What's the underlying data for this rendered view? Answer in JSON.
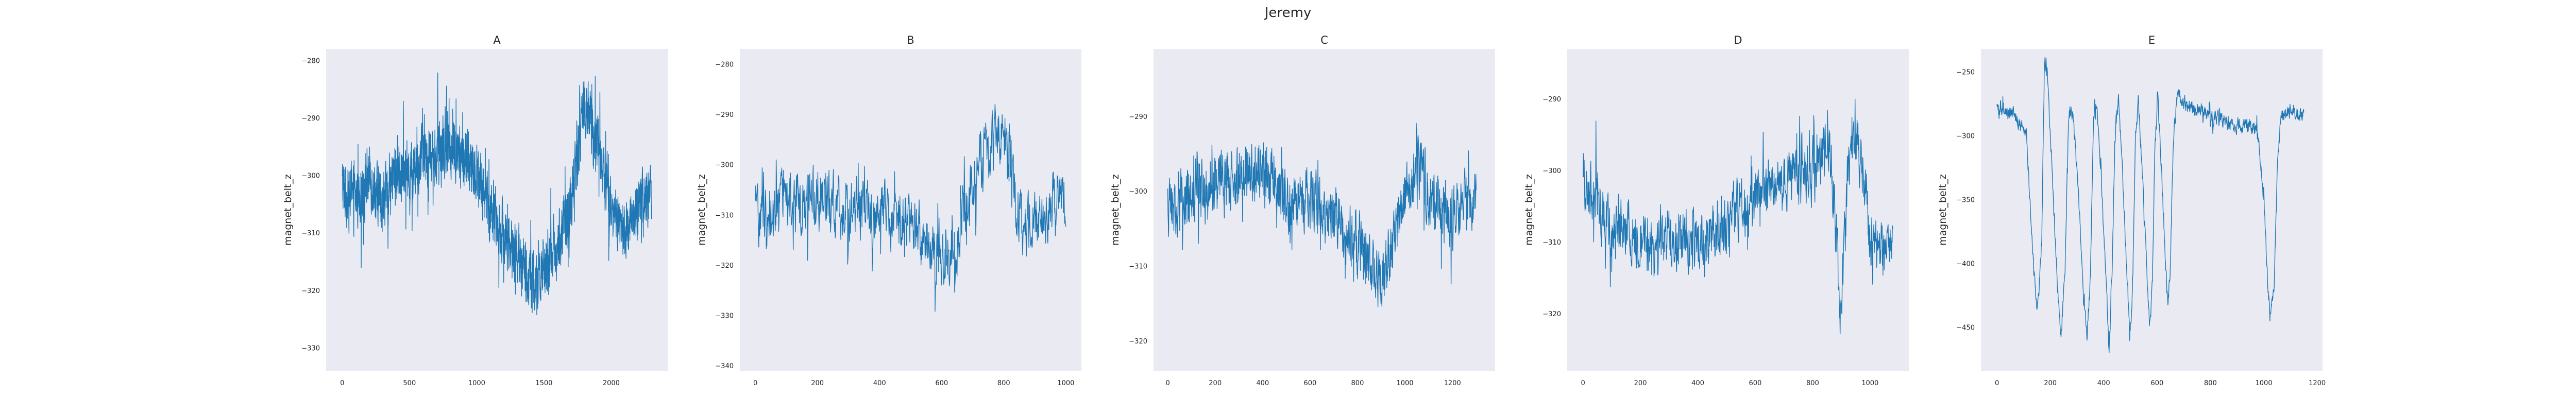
{
  "figure": {
    "title": "Jeremy",
    "background": "#ffffff",
    "axes_facecolor": "#eaeaf2",
    "line_color": "#1f77b4"
  },
  "chart_data": [
    {
      "type": "line",
      "title": "A",
      "xlabel": "",
      "ylabel": "magnet_belt_z",
      "xlim": [
        -120,
        2420
      ],
      "ylim": [
        -334,
        -278
      ],
      "xticks": [
        0,
        500,
        1000,
        1500,
        2000
      ],
      "yticks": [
        -280,
        -290,
        -300,
        -310,
        -320,
        -330
      ],
      "grid": false,
      "n_points": 2300,
      "keypoints": [
        [
          0,
          -302
        ],
        [
          80,
          -305
        ],
        [
          200,
          -300
        ],
        [
          300,
          -305
        ],
        [
          400,
          -299
        ],
        [
          500,
          -300
        ],
        [
          600,
          -296
        ],
        [
          700,
          -297
        ],
        [
          800,
          -295
        ],
        [
          900,
          -297
        ],
        [
          1000,
          -299
        ],
        [
          1100,
          -306
        ],
        [
          1200,
          -310
        ],
        [
          1300,
          -314
        ],
        [
          1400,
          -318
        ],
        [
          1450,
          -320
        ],
        [
          1500,
          -316
        ],
        [
          1600,
          -312
        ],
        [
          1700,
          -305
        ],
        [
          1750,
          -296
        ],
        [
          1800,
          -288
        ],
        [
          1850,
          -290
        ],
        [
          1900,
          -295
        ],
        [
          2000,
          -305
        ],
        [
          2100,
          -310
        ],
        [
          2200,
          -306
        ],
        [
          2300,
          -303
        ]
      ]
    },
    {
      "type": "line",
      "title": "B",
      "xlabel": "",
      "ylabel": "magnet_belt_z",
      "xlim": [
        -50,
        1050
      ],
      "ylim": [
        -341,
        -277
      ],
      "xticks": [
        0,
        200,
        400,
        600,
        800,
        1000
      ],
      "yticks": [
        -280,
        -290,
        -300,
        -310,
        -320,
        -330,
        -340
      ],
      "grid": false,
      "n_points": 1000,
      "keypoints": [
        [
          0,
          -310
        ],
        [
          100,
          -308
        ],
        [
          200,
          -307
        ],
        [
          300,
          -309
        ],
        [
          400,
          -310
        ],
        [
          500,
          -311
        ],
        [
          550,
          -315
        ],
        [
          600,
          -320
        ],
        [
          650,
          -316
        ],
        [
          700,
          -303
        ],
        [
          740,
          -298
        ],
        [
          780,
          -293
        ],
        [
          800,
          -292
        ],
        [
          830,
          -305
        ],
        [
          860,
          -313
        ],
        [
          900,
          -312
        ],
        [
          950,
          -308
        ],
        [
          1000,
          -305
        ]
      ]
    },
    {
      "type": "line",
      "title": "C",
      "xlabel": "",
      "ylabel": "magnet_belt_z",
      "xlim": [
        -60,
        1380
      ],
      "ylim": [
        -324,
        -281
      ],
      "xticks": [
        0,
        200,
        400,
        600,
        800,
        1000,
        1200
      ],
      "yticks": [
        -290,
        -300,
        -310,
        -320
      ],
      "grid": false,
      "n_points": 1320,
      "keypoints": [
        [
          0,
          -302
        ],
        [
          100,
          -301
        ],
        [
          200,
          -299
        ],
        [
          300,
          -298
        ],
        [
          400,
          -297
        ],
        [
          500,
          -301
        ],
        [
          600,
          -301
        ],
        [
          700,
          -303
        ],
        [
          800,
          -307
        ],
        [
          900,
          -312
        ],
        [
          950,
          -308
        ],
        [
          1000,
          -300
        ],
        [
          1050,
          -297
        ],
        [
          1100,
          -300
        ],
        [
          1200,
          -304
        ],
        [
          1300,
          -300
        ]
      ]
    },
    {
      "type": "line",
      "title": "D",
      "xlabel": "",
      "ylabel": "magnet_belt_z",
      "xlim": [
        -55,
        1135
      ],
      "ylim": [
        -328,
        -283
      ],
      "xticks": [
        0,
        200,
        400,
        600,
        800,
        1000
      ],
      "yticks": [
        -290,
        -300,
        -310,
        -320
      ],
      "grid": false,
      "n_points": 1080,
      "keypoints": [
        [
          0,
          -302
        ],
        [
          100,
          -307
        ],
        [
          200,
          -310
        ],
        [
          300,
          -309
        ],
        [
          400,
          -310
        ],
        [
          500,
          -308
        ],
        [
          600,
          -303
        ],
        [
          700,
          -302
        ],
        [
          800,
          -300
        ],
        [
          860,
          -297
        ],
        [
          880,
          -307
        ],
        [
          900,
          -322
        ],
        [
          920,
          -302
        ],
        [
          950,
          -296
        ],
        [
          980,
          -300
        ],
        [
          1000,
          -310
        ],
        [
          1050,
          -312
        ],
        [
          1080,
          -310
        ]
      ]
    },
    {
      "type": "line",
      "title": "E",
      "xlabel": "",
      "ylabel": "magnet_belt_z",
      "xlim": [
        -60,
        1220
      ],
      "ylim": [
        -484,
        -232
      ],
      "xticks": [
        0,
        200,
        400,
        600,
        800,
        1000,
        1200
      ],
      "yticks": [
        -250,
        -300,
        -350,
        -400,
        -450
      ],
      "grid": false,
      "n_points": 1150,
      "keypoints": [
        [
          0,
          -280
        ],
        [
          60,
          -282
        ],
        [
          110,
          -300
        ],
        [
          135,
          -395
        ],
        [
          150,
          -440
        ],
        [
          168,
          -380
        ],
        [
          178,
          -240
        ],
        [
          188,
          -250
        ],
        [
          205,
          -320
        ],
        [
          225,
          -410
        ],
        [
          240,
          -455
        ],
        [
          255,
          -405
        ],
        [
          268,
          -285
        ],
        [
          285,
          -280
        ],
        [
          305,
          -345
        ],
        [
          325,
          -430
        ],
        [
          338,
          -455
        ],
        [
          350,
          -412
        ],
        [
          362,
          -290
        ],
        [
          372,
          -272
        ],
        [
          392,
          -340
        ],
        [
          410,
          -420
        ],
        [
          420,
          -470
        ],
        [
          432,
          -405
        ],
        [
          442,
          -300
        ],
        [
          455,
          -270
        ],
        [
          470,
          -330
        ],
        [
          490,
          -420
        ],
        [
          498,
          -460
        ],
        [
          508,
          -420
        ],
        [
          518,
          -310
        ],
        [
          530,
          -272
        ],
        [
          545,
          -330
        ],
        [
          565,
          -420
        ],
        [
          572,
          -450
        ],
        [
          582,
          -420
        ],
        [
          592,
          -310
        ],
        [
          602,
          -270
        ],
        [
          615,
          -320
        ],
        [
          630,
          -390
        ],
        [
          640,
          -435
        ],
        [
          650,
          -400
        ],
        [
          660,
          -310
        ],
        [
          672,
          -275
        ],
        [
          685,
          -268
        ],
        [
          700,
          -275
        ],
        [
          750,
          -280
        ],
        [
          800,
          -285
        ],
        [
          850,
          -288
        ],
        [
          900,
          -292
        ],
        [
          950,
          -292
        ],
        [
          980,
          -300
        ],
        [
          1000,
          -350
        ],
        [
          1015,
          -420
        ],
        [
          1025,
          -440
        ],
        [
          1038,
          -420
        ],
        [
          1052,
          -320
        ],
        [
          1065,
          -285
        ],
        [
          1100,
          -280
        ],
        [
          1130,
          -282
        ],
        [
          1150,
          -285
        ]
      ]
    }
  ]
}
